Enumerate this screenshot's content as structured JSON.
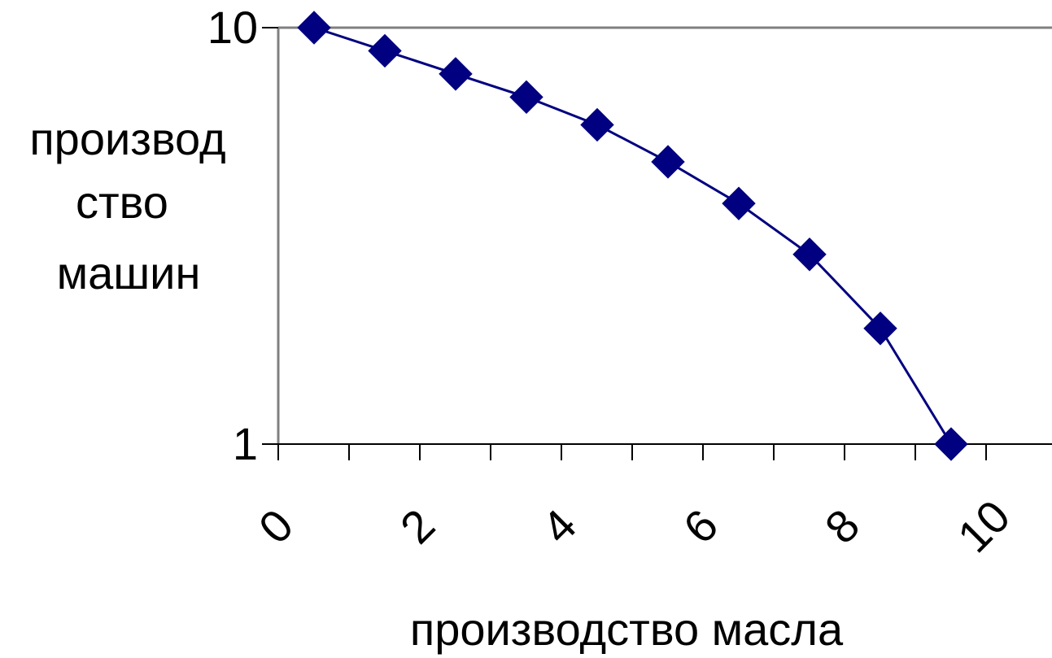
{
  "chart_data": {
    "type": "line",
    "title": "",
    "xlabel": "производство масла",
    "ylabel_lines": [
      "производ",
      "ство",
      "машин"
    ],
    "x_tick_labels": [
      "0",
      "2",
      "4",
      "6",
      "8",
      "10"
    ],
    "y_tick_labels": [
      "1",
      "10"
    ],
    "xlim": [
      0,
      10
    ],
    "ylim": [
      1,
      10
    ],
    "categories": [
      1,
      2,
      3,
      4,
      5,
      6,
      7,
      8,
      9,
      10
    ],
    "series": [
      {
        "values": [
          10,
          9.5,
          9,
          8.5,
          7.9,
          7.1,
          6.2,
          5.1,
          3.5,
          1
        ],
        "color": "#000080",
        "marker": "diamond"
      }
    ],
    "grid": false,
    "legend": "none"
  }
}
